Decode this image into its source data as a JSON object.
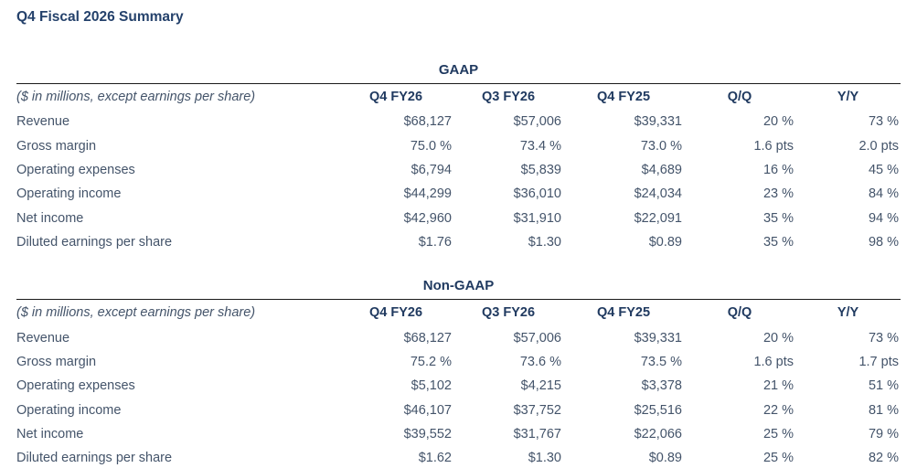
{
  "page": {
    "title": "Q4 Fiscal 2026 Summary"
  },
  "colors": {
    "title_text": "#24416b",
    "header_text": "#203a60",
    "body_text": "#44546a",
    "rule": "#1a1a1a",
    "background": "#ffffff"
  },
  "tables": [
    {
      "caption": "GAAP",
      "unit_note": "($ in millions, except earnings per share)",
      "columns": [
        "Q4 FY26",
        "Q3 FY26",
        "Q4 FY25",
        "Q/Q",
        "Y/Y"
      ],
      "rows": [
        {
          "label": "Revenue",
          "values": [
            "$68,127",
            "$57,006",
            "$39,331",
            "20 %",
            "73 %"
          ]
        },
        {
          "label": "Gross margin",
          "values": [
            "75.0 %",
            "73.4 %",
            "73.0 %",
            "1.6 pts",
            "2.0 pts"
          ]
        },
        {
          "label": "Operating expenses",
          "values": [
            "$6,794",
            "$5,839",
            "$4,689",
            "16 %",
            "45 %"
          ]
        },
        {
          "label": "Operating income",
          "values": [
            "$44,299",
            "$36,010",
            "$24,034",
            "23 %",
            "84 %"
          ]
        },
        {
          "label": "Net income",
          "values": [
            "$42,960",
            "$31,910",
            "$22,091",
            "35 %",
            "94 %"
          ]
        },
        {
          "label": "Diluted earnings per share",
          "values": [
            "$1.76",
            "$1.30",
            "$0.89",
            "35 %",
            "98 %"
          ]
        }
      ]
    },
    {
      "caption": "Non-GAAP",
      "unit_note": "($ in millions, except earnings per share)",
      "columns": [
        "Q4 FY26",
        "Q3 FY26",
        "Q4 FY25",
        "Q/Q",
        "Y/Y"
      ],
      "rows": [
        {
          "label": "Revenue",
          "values": [
            "$68,127",
            "$57,006",
            "$39,331",
            "20 %",
            "73 %"
          ]
        },
        {
          "label": "Gross margin",
          "values": [
            "75.2 %",
            "73.6 %",
            "73.5 %",
            "1.6 pts",
            "1.7 pts"
          ]
        },
        {
          "label": "Operating expenses",
          "values": [
            "$5,102",
            "$4,215",
            "$3,378",
            "21 %",
            "51 %"
          ]
        },
        {
          "label": "Operating income",
          "values": [
            "$46,107",
            "$37,752",
            "$25,516",
            "22 %",
            "81 %"
          ]
        },
        {
          "label": "Net income",
          "values": [
            "$39,552",
            "$31,767",
            "$22,066",
            "25 %",
            "79 %"
          ]
        },
        {
          "label": "Diluted earnings per share",
          "values": [
            "$1.62",
            "$1.30",
            "$0.89",
            "25 %",
            "82 %"
          ]
        }
      ]
    }
  ]
}
